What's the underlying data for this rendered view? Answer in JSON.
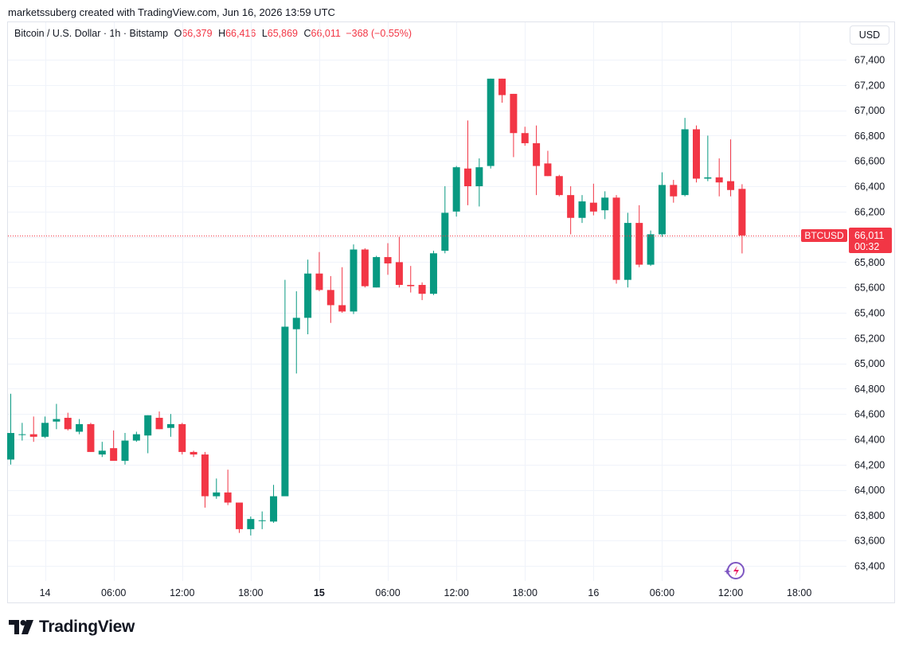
{
  "header": {
    "credit": "marketssuberg created with TradingView.com, Jun 16, 2026 13:59 UTC"
  },
  "legend": {
    "symbol": "Bitcoin / U.S. Dollar · 1h · Bitstamp",
    "open_label": "O",
    "open": "66,379",
    "high_label": "H",
    "high": "66,416",
    "low_label": "L",
    "low": "65,869",
    "close_label": "C",
    "close": "66,011",
    "change": "−368 (−0.55%)"
  },
  "currency_button": "USD",
  "price_tag": {
    "ticker": "BTCUSD",
    "price": "66,011",
    "countdown": "00:32"
  },
  "branding": {
    "name": "TradingView"
  },
  "colors": {
    "up": "#089981",
    "down": "#f23645",
    "grid": "#f0f3fa",
    "text": "#131722",
    "accent_icon": "#7e57c2"
  },
  "chart_data": {
    "type": "candlestick",
    "symbol": "BTCUSD",
    "interval": "1h",
    "current_price": 66011,
    "y_ticks": [
      63400,
      63600,
      63800,
      64000,
      64200,
      64400,
      64600,
      64800,
      65000,
      65200,
      65400,
      65600,
      65800,
      66000,
      66200,
      66400,
      66600,
      66800,
      67000,
      67200,
      67400
    ],
    "y_tick_labels": [
      "63,400",
      "63,600",
      "63,800",
      "64,000",
      "64,200",
      "64,400",
      "64,600",
      "64,800",
      "65,000",
      "65,200",
      "65,400",
      "65,600",
      "65,800",
      "66,000",
      "66,200",
      "66,400",
      "66,600",
      "66,800",
      "67,000",
      "67,200",
      "67,400"
    ],
    "x_ticks": [
      {
        "bar": 3,
        "label": "14",
        "bold": false
      },
      {
        "bar": 9,
        "label": "06:00",
        "bold": false
      },
      {
        "bar": 15,
        "label": "12:00",
        "bold": false
      },
      {
        "bar": 21,
        "label": "18:00",
        "bold": false
      },
      {
        "bar": 27,
        "label": "15",
        "bold": true
      },
      {
        "bar": 33,
        "label": "06:00",
        "bold": false
      },
      {
        "bar": 39,
        "label": "12:00",
        "bold": false
      },
      {
        "bar": 45,
        "label": "18:00",
        "bold": false
      },
      {
        "bar": 51,
        "label": "16",
        "bold": false
      },
      {
        "bar": 57,
        "label": "06:00",
        "bold": false
      },
      {
        "bar": 63,
        "label": "12:00",
        "bold": false
      },
      {
        "bar": 69,
        "label": "18:00",
        "bold": false
      }
    ],
    "candles": [
      {
        "o": 64240,
        "h": 64760,
        "l": 64200,
        "c": 64450
      },
      {
        "o": 64440,
        "h": 64530,
        "l": 64390,
        "c": 64440
      },
      {
        "o": 64440,
        "h": 64580,
        "l": 64380,
        "c": 64420
      },
      {
        "o": 64420,
        "h": 64580,
        "l": 64410,
        "c": 64530
      },
      {
        "o": 64540,
        "h": 64680,
        "l": 64480,
        "c": 64560
      },
      {
        "o": 64570,
        "h": 64610,
        "l": 64470,
        "c": 64480
      },
      {
        "o": 64460,
        "h": 64560,
        "l": 64440,
        "c": 64520
      },
      {
        "o": 64520,
        "h": 64530,
        "l": 64300,
        "c": 64300
      },
      {
        "o": 64280,
        "h": 64380,
        "l": 64260,
        "c": 64310
      },
      {
        "o": 64330,
        "h": 64470,
        "l": 64230,
        "c": 64230
      },
      {
        "o": 64230,
        "h": 64450,
        "l": 64200,
        "c": 64390
      },
      {
        "o": 64390,
        "h": 64460,
        "l": 64380,
        "c": 64440
      },
      {
        "o": 64430,
        "h": 64590,
        "l": 64290,
        "c": 64590
      },
      {
        "o": 64570,
        "h": 64620,
        "l": 64480,
        "c": 64480
      },
      {
        "o": 64490,
        "h": 64600,
        "l": 64420,
        "c": 64520
      },
      {
        "o": 64520,
        "h": 64530,
        "l": 64280,
        "c": 64300
      },
      {
        "o": 64300,
        "h": 64310,
        "l": 64260,
        "c": 64280
      },
      {
        "o": 64280,
        "h": 64300,
        "l": 63860,
        "c": 63950
      },
      {
        "o": 63950,
        "h": 64090,
        "l": 63930,
        "c": 63980
      },
      {
        "o": 63980,
        "h": 64160,
        "l": 63880,
        "c": 63900
      },
      {
        "o": 63900,
        "h": 63900,
        "l": 63660,
        "c": 63690
      },
      {
        "o": 63690,
        "h": 63790,
        "l": 63640,
        "c": 63770
      },
      {
        "o": 63760,
        "h": 63830,
        "l": 63690,
        "c": 63760
      },
      {
        "o": 63750,
        "h": 64040,
        "l": 63740,
        "c": 63950
      },
      {
        "o": 63950,
        "h": 65660,
        "l": 63950,
        "c": 65290
      },
      {
        "o": 65270,
        "h": 65570,
        "l": 64920,
        "c": 65360
      },
      {
        "o": 65360,
        "h": 65820,
        "l": 65230,
        "c": 65710
      },
      {
        "o": 65710,
        "h": 65880,
        "l": 65570,
        "c": 65580
      },
      {
        "o": 65580,
        "h": 65690,
        "l": 65320,
        "c": 65460
      },
      {
        "o": 65460,
        "h": 65760,
        "l": 65400,
        "c": 65410
      },
      {
        "o": 65410,
        "h": 65940,
        "l": 65390,
        "c": 65900
      },
      {
        "o": 65900,
        "h": 65910,
        "l": 65600,
        "c": 65610
      },
      {
        "o": 65600,
        "h": 65850,
        "l": 65600,
        "c": 65840
      },
      {
        "o": 65840,
        "h": 65950,
        "l": 65700,
        "c": 65790
      },
      {
        "o": 65800,
        "h": 66000,
        "l": 65600,
        "c": 65620
      },
      {
        "o": 65620,
        "h": 65770,
        "l": 65560,
        "c": 65610
      },
      {
        "o": 65620,
        "h": 65640,
        "l": 65500,
        "c": 65550
      },
      {
        "o": 65550,
        "h": 65890,
        "l": 65540,
        "c": 65870
      },
      {
        "o": 65890,
        "h": 66400,
        "l": 65870,
        "c": 66190
      },
      {
        "o": 66200,
        "h": 66560,
        "l": 66160,
        "c": 66550
      },
      {
        "o": 66540,
        "h": 66920,
        "l": 66250,
        "c": 66400
      },
      {
        "o": 66400,
        "h": 66620,
        "l": 66240,
        "c": 66550
      },
      {
        "o": 66560,
        "h": 67250,
        "l": 66540,
        "c": 67250
      },
      {
        "o": 67250,
        "h": 67250,
        "l": 67060,
        "c": 67120
      },
      {
        "o": 67130,
        "h": 67130,
        "l": 66630,
        "c": 66820
      },
      {
        "o": 66820,
        "h": 66870,
        "l": 66720,
        "c": 66740
      },
      {
        "o": 66740,
        "h": 66880,
        "l": 66330,
        "c": 66560
      },
      {
        "o": 66580,
        "h": 66680,
        "l": 66480,
        "c": 66480
      },
      {
        "o": 66480,
        "h": 66490,
        "l": 66320,
        "c": 66330
      },
      {
        "o": 66330,
        "h": 66400,
        "l": 66020,
        "c": 66150
      },
      {
        "o": 66150,
        "h": 66330,
        "l": 66110,
        "c": 66280
      },
      {
        "o": 66270,
        "h": 66420,
        "l": 66170,
        "c": 66200
      },
      {
        "o": 66210,
        "h": 66360,
        "l": 66140,
        "c": 66310
      },
      {
        "o": 66310,
        "h": 66330,
        "l": 65630,
        "c": 65660
      },
      {
        "o": 65660,
        "h": 66190,
        "l": 65600,
        "c": 66110
      },
      {
        "o": 66110,
        "h": 66250,
        "l": 65760,
        "c": 65780
      },
      {
        "o": 65780,
        "h": 66050,
        "l": 65770,
        "c": 66020
      },
      {
        "o": 66020,
        "h": 66510,
        "l": 66000,
        "c": 66410
      },
      {
        "o": 66410,
        "h": 66450,
        "l": 66270,
        "c": 66320
      },
      {
        "o": 66330,
        "h": 66940,
        "l": 66320,
        "c": 66850
      },
      {
        "o": 66850,
        "h": 66880,
        "l": 66430,
        "c": 66460
      },
      {
        "o": 66460,
        "h": 66800,
        "l": 66440,
        "c": 66470
      },
      {
        "o": 66470,
        "h": 66620,
        "l": 66320,
        "c": 66430
      },
      {
        "o": 66440,
        "h": 66770,
        "l": 66320,
        "c": 66370
      },
      {
        "o": 66379,
        "h": 66416,
        "l": 65869,
        "c": 66011
      }
    ]
  }
}
